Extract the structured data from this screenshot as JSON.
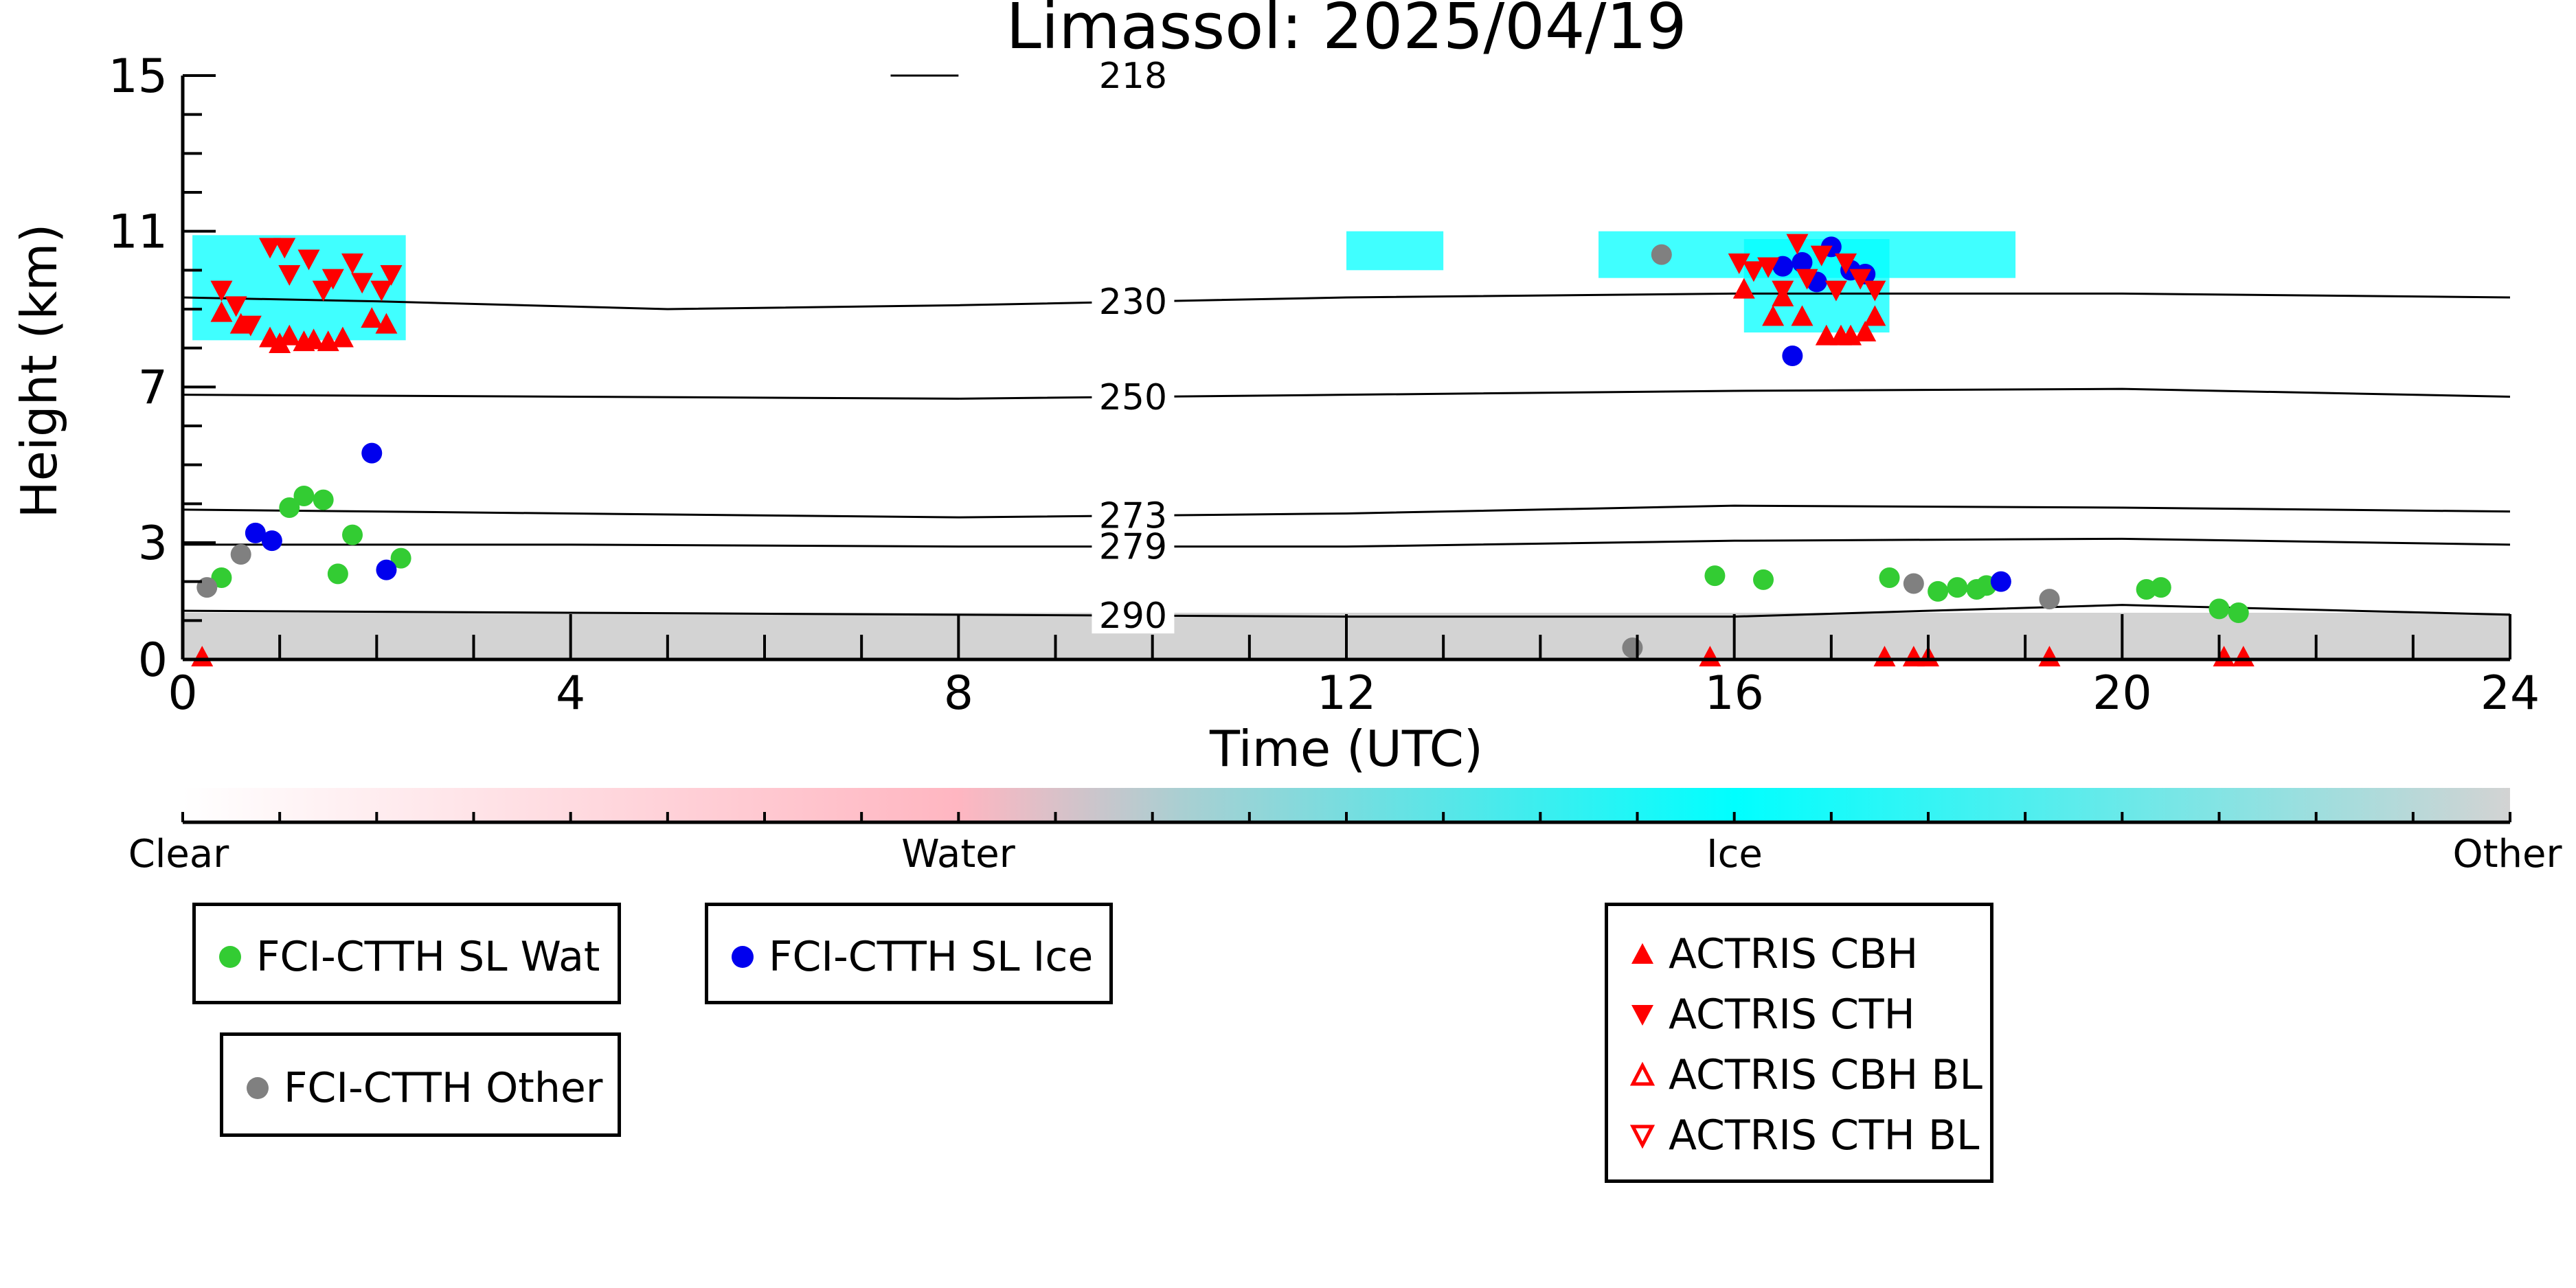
{
  "chart_data": {
    "type": "scatter",
    "title": "Limassol: 2025/04/19",
    "xlabel": "Time (UTC)",
    "ylabel": "Height (km)",
    "xlim": [
      0,
      24
    ],
    "ylim": [
      0,
      15
    ],
    "x_ticks": [
      0,
      4,
      8,
      12,
      16,
      20,
      24
    ],
    "y_ticks": [
      0,
      3,
      7,
      11,
      15
    ],
    "grid": false,
    "colorbar": {
      "labels": [
        "Clear",
        "Water",
        "Ice",
        "Other"
      ],
      "colors": [
        "#ffffff",
        "#ffb6c1",
        "#00ffff",
        "#d3d3d3"
      ]
    },
    "isotherms": [
      {
        "label": "218",
        "points": [
          [
            7.3,
            15.0
          ],
          [
            8.0,
            15.0
          ]
        ]
      },
      {
        "label": "230",
        "points": [
          [
            0,
            9.3
          ],
          [
            2,
            9.2
          ],
          [
            5,
            9.0
          ],
          [
            8,
            9.1
          ],
          [
            12,
            9.3
          ],
          [
            16,
            9.4
          ],
          [
            20,
            9.4
          ],
          [
            24,
            9.3
          ]
        ]
      },
      {
        "label": "250",
        "points": [
          [
            0,
            6.8
          ],
          [
            4,
            6.75
          ],
          [
            8,
            6.7
          ],
          [
            12,
            6.8
          ],
          [
            16,
            6.9
          ],
          [
            20,
            6.95
          ],
          [
            24,
            6.75
          ]
        ]
      },
      {
        "label": "273",
        "points": [
          [
            0,
            3.85
          ],
          [
            4,
            3.75
          ],
          [
            8,
            3.65
          ],
          [
            12,
            3.75
          ],
          [
            16,
            3.95
          ],
          [
            20,
            3.9
          ],
          [
            24,
            3.8
          ]
        ]
      },
      {
        "label": "279",
        "points": [
          [
            0,
            2.95
          ],
          [
            4,
            2.95
          ],
          [
            8,
            2.9
          ],
          [
            12,
            2.9
          ],
          [
            16,
            3.05
          ],
          [
            20,
            3.1
          ],
          [
            24,
            2.95
          ]
        ]
      },
      {
        "label": "290",
        "points": [
          [
            0,
            1.25
          ],
          [
            4,
            1.2
          ],
          [
            8,
            1.15
          ],
          [
            12,
            1.1
          ],
          [
            16,
            1.1
          ],
          [
            20,
            1.4
          ],
          [
            24,
            1.15
          ]
        ]
      }
    ],
    "cloud_regions": [
      {
        "class": "Ice",
        "x": [
          0.1,
          2.3
        ],
        "y": [
          8.2,
          10.9
        ]
      },
      {
        "class": "Ice",
        "x": [
          16.1,
          17.6
        ],
        "y": [
          8.4,
          10.8
        ]
      },
      {
        "class": "Ice",
        "x": [
          14.6,
          18.9
        ],
        "y": [
          9.8,
          11.0
        ]
      },
      {
        "class": "Ice",
        "x": [
          12.0,
          13.0
        ],
        "y": [
          10.0,
          11.0
        ]
      },
      {
        "class": "Other",
        "x": [
          0,
          24
        ],
        "y": [
          0,
          1.2
        ]
      }
    ],
    "series": [
      {
        "name": "FCI-CTTH SL Wat",
        "marker": "circle",
        "color": "#33cc33",
        "points": [
          [
            0.4,
            2.1
          ],
          [
            1.1,
            3.9
          ],
          [
            1.25,
            4.2
          ],
          [
            1.45,
            4.1
          ],
          [
            1.6,
            2.2
          ],
          [
            1.75,
            3.2
          ],
          [
            2.25,
            2.6
          ],
          [
            15.8,
            2.15
          ],
          [
            16.3,
            2.05
          ],
          [
            17.6,
            2.1
          ],
          [
            18.1,
            1.75
          ],
          [
            18.3,
            1.85
          ],
          [
            18.5,
            1.8
          ],
          [
            18.6,
            1.9
          ],
          [
            20.25,
            1.8
          ],
          [
            20.4,
            1.85
          ],
          [
            21.0,
            1.3
          ],
          [
            21.2,
            1.2
          ]
        ]
      },
      {
        "name": "FCI-CTTH SL Ice",
        "marker": "circle",
        "color": "#0000ee",
        "points": [
          [
            0.75,
            3.25
          ],
          [
            0.92,
            3.05
          ],
          [
            1.95,
            5.3
          ],
          [
            2.1,
            2.3
          ],
          [
            16.5,
            10.1
          ],
          [
            16.7,
            10.2
          ],
          [
            16.85,
            9.7
          ],
          [
            17.0,
            10.6
          ],
          [
            17.2,
            10.0
          ],
          [
            17.35,
            9.9
          ],
          [
            16.6,
            7.8
          ],
          [
            18.75,
            2.0
          ]
        ]
      },
      {
        "name": "FCI-CTTH Other",
        "marker": "circle",
        "color": "#808080",
        "points": [
          [
            0.25,
            1.85
          ],
          [
            0.6,
            2.7
          ],
          [
            14.95,
            0.3
          ],
          [
            15.25,
            10.4
          ],
          [
            17.85,
            1.95
          ],
          [
            19.25,
            1.55
          ]
        ]
      },
      {
        "name": "ACTRIS CBH",
        "marker": "triangle-up",
        "color": "#ff0000",
        "points": [
          [
            0.4,
            8.9
          ],
          [
            0.6,
            8.6
          ],
          [
            0.9,
            8.25
          ],
          [
            1.0,
            8.1
          ],
          [
            1.1,
            8.3
          ],
          [
            1.25,
            8.15
          ],
          [
            1.35,
            8.2
          ],
          [
            1.5,
            8.15
          ],
          [
            1.65,
            8.25
          ],
          [
            1.95,
            8.75
          ],
          [
            2.1,
            8.6
          ],
          [
            16.1,
            9.5
          ],
          [
            16.4,
            8.8
          ],
          [
            16.5,
            9.3
          ],
          [
            16.7,
            8.8
          ],
          [
            16.95,
            8.3
          ],
          [
            17.1,
            8.3
          ],
          [
            17.2,
            8.3
          ],
          [
            17.35,
            8.4
          ],
          [
            17.45,
            8.8
          ],
          [
            0.2,
            0.05
          ],
          [
            15.75,
            0.05
          ],
          [
            17.55,
            0.05
          ],
          [
            17.85,
            0.05
          ],
          [
            18.0,
            0.05
          ],
          [
            19.25,
            0.05
          ],
          [
            21.05,
            0.05
          ],
          [
            21.25,
            0.05
          ]
        ]
      },
      {
        "name": "ACTRIS CTH",
        "marker": "triangle-down",
        "color": "#ff0000",
        "points": [
          [
            0.4,
            9.5
          ],
          [
            0.55,
            9.1
          ],
          [
            0.7,
            8.6
          ],
          [
            0.9,
            10.6
          ],
          [
            1.05,
            10.6
          ],
          [
            1.1,
            9.9
          ],
          [
            1.3,
            10.3
          ],
          [
            1.45,
            9.5
          ],
          [
            1.55,
            9.8
          ],
          [
            1.75,
            10.2
          ],
          [
            1.85,
            9.7
          ],
          [
            2.05,
            9.5
          ],
          [
            2.15,
            9.9
          ],
          [
            16.05,
            10.2
          ],
          [
            16.2,
            10.0
          ],
          [
            16.35,
            10.1
          ],
          [
            16.5,
            9.5
          ],
          [
            16.65,
            10.7
          ],
          [
            16.75,
            9.8
          ],
          [
            16.9,
            10.4
          ],
          [
            17.05,
            9.5
          ],
          [
            17.15,
            10.2
          ],
          [
            17.3,
            9.8
          ],
          [
            17.45,
            9.5
          ]
        ]
      },
      {
        "name": "ACTRIS CBH BL",
        "marker": "triangle-up-open",
        "color": "#ff0000",
        "points": []
      },
      {
        "name": "ACTRIS CTH BL",
        "marker": "triangle-down-open",
        "color": "#ff0000",
        "points": []
      }
    ]
  }
}
